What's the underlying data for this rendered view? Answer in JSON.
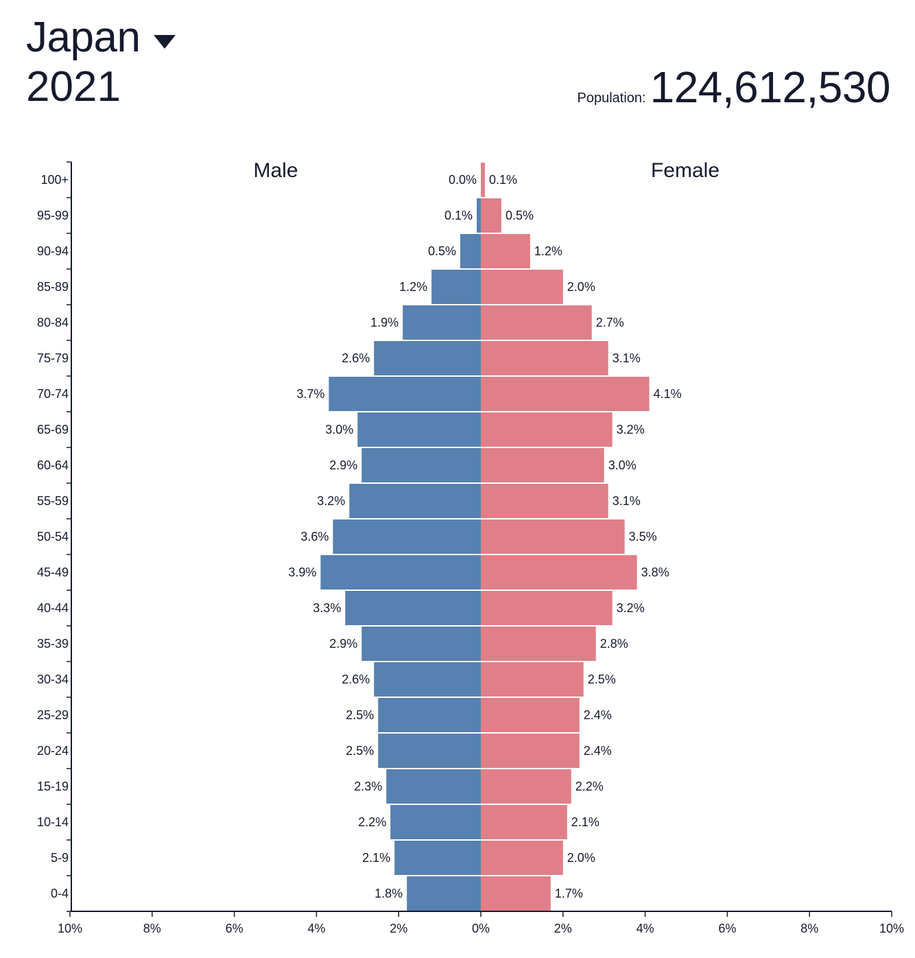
{
  "header": {
    "country": "Japan",
    "year": "2021",
    "population_label": "Population:",
    "population_value": "124,612,530"
  },
  "colors": {
    "male": "#5681b0",
    "female": "#e07f88",
    "text": "#161a2e"
  },
  "icons": {
    "dropdown": "caret-down-icon"
  },
  "chart_data": {
    "type": "bar",
    "orientation": "horizontal",
    "layout": "population-pyramid",
    "categories": [
      "100+",
      "95-99",
      "90-94",
      "85-89",
      "80-84",
      "75-79",
      "70-74",
      "65-69",
      "60-64",
      "55-59",
      "50-54",
      "45-49",
      "40-44",
      "35-39",
      "30-34",
      "25-29",
      "20-24",
      "15-19",
      "10-14",
      "5-9",
      "0-4"
    ],
    "series": [
      {
        "name": "Male",
        "side": "left",
        "values": [
          0.0,
          0.1,
          0.5,
          1.2,
          1.9,
          2.6,
          3.7,
          3.0,
          2.9,
          3.2,
          3.6,
          3.9,
          3.3,
          2.9,
          2.6,
          2.5,
          2.5,
          2.3,
          2.2,
          2.1,
          1.8
        ],
        "labels": [
          "0.0%",
          "0.1%",
          "0.5%",
          "1.2%",
          "1.9%",
          "2.6%",
          "3.7%",
          "3.0%",
          "2.9%",
          "3.2%",
          "3.6%",
          "3.9%",
          "3.3%",
          "2.9%",
          "2.6%",
          "2.5%",
          "2.5%",
          "2.3%",
          "2.2%",
          "2.1%",
          "1.8%"
        ]
      },
      {
        "name": "Female",
        "side": "right",
        "values": [
          0.1,
          0.5,
          1.2,
          2.0,
          2.7,
          3.1,
          4.1,
          3.2,
          3.0,
          3.1,
          3.5,
          3.8,
          3.2,
          2.8,
          2.5,
          2.4,
          2.4,
          2.2,
          2.1,
          2.0,
          1.7
        ],
        "labels": [
          "0.1%",
          "0.5%",
          "1.2%",
          "2.0%",
          "2.7%",
          "3.1%",
          "4.1%",
          "3.2%",
          "3.0%",
          "3.1%",
          "3.5%",
          "3.8%",
          "3.2%",
          "2.8%",
          "2.5%",
          "2.4%",
          "2.4%",
          "2.2%",
          "2.1%",
          "2.0%",
          "1.7%"
        ]
      }
    ],
    "x_ticks": [
      "10%",
      "8%",
      "6%",
      "4%",
      "2%",
      "0%",
      "2%",
      "4%",
      "6%",
      "8%",
      "10%"
    ],
    "xlim": [
      -10,
      10
    ],
    "xlabel": "",
    "ylabel": "",
    "grid": false
  }
}
